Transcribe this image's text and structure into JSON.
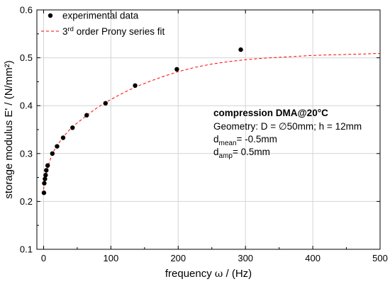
{
  "chart_data": {
    "type": "scatter",
    "xlabel_text": "frequency",
    "xlabel_symbol": "ω",
    "xlabel_unit": "/ (Hz)",
    "ylabel_text": "storage modulus E' / (N/mm²)",
    "xlim": [
      -10,
      500
    ],
    "ylim": [
      0.1,
      0.6
    ],
    "xticks": [
      0,
      100,
      200,
      300,
      400,
      500
    ],
    "yticks": [
      0.1,
      0.2,
      0.3,
      0.4,
      0.5,
      0.6
    ],
    "grid": true,
    "legend_position": "top-left",
    "series": [
      {
        "name": "experimental data",
        "kind": "scatter",
        "color": "#000000",
        "x": [
          0.5,
          1,
          2,
          3,
          4,
          6,
          13,
          20,
          29,
          43,
          64,
          92,
          136,
          198,
          293
        ],
        "y": [
          0.218,
          0.238,
          0.247,
          0.255,
          0.265,
          0.275,
          0.3,
          0.315,
          0.333,
          0.354,
          0.38,
          0.405,
          0.442,
          0.476,
          0.517
        ]
      },
      {
        "name_prefix": "3",
        "name_sup": "rd",
        "name_suffix": " order Prony series fit",
        "kind": "line",
        "style": "dashed",
        "color": "#ff0000",
        "x": [
          0,
          2,
          5,
          10,
          15,
          20,
          30,
          40,
          50,
          60,
          70,
          80,
          90,
          100,
          120,
          140,
          160,
          180,
          200,
          225,
          250,
          275,
          300,
          325,
          350,
          375,
          400,
          425,
          450,
          475,
          500
        ],
        "y": [
          0.225,
          0.245,
          0.265,
          0.288,
          0.305,
          0.317,
          0.336,
          0.352,
          0.364,
          0.375,
          0.386,
          0.396,
          0.405,
          0.413,
          0.428,
          0.441,
          0.452,
          0.462,
          0.471,
          0.48,
          0.487,
          0.492,
          0.496,
          0.499,
          0.501,
          0.503,
          0.505,
          0.506,
          0.507,
          0.508,
          0.509
        ]
      }
    ],
    "annotation": {
      "title": "compression DMA@20°C",
      "line1": "Geometry: D = ∅50mm; h = 12mm",
      "line2_pre": "d",
      "line2_sub": "mean",
      "line2_post": "= -0.5mm",
      "line3_pre": "d",
      "line3_sub": "amp",
      "line3_post": "= 0.5mm"
    }
  }
}
